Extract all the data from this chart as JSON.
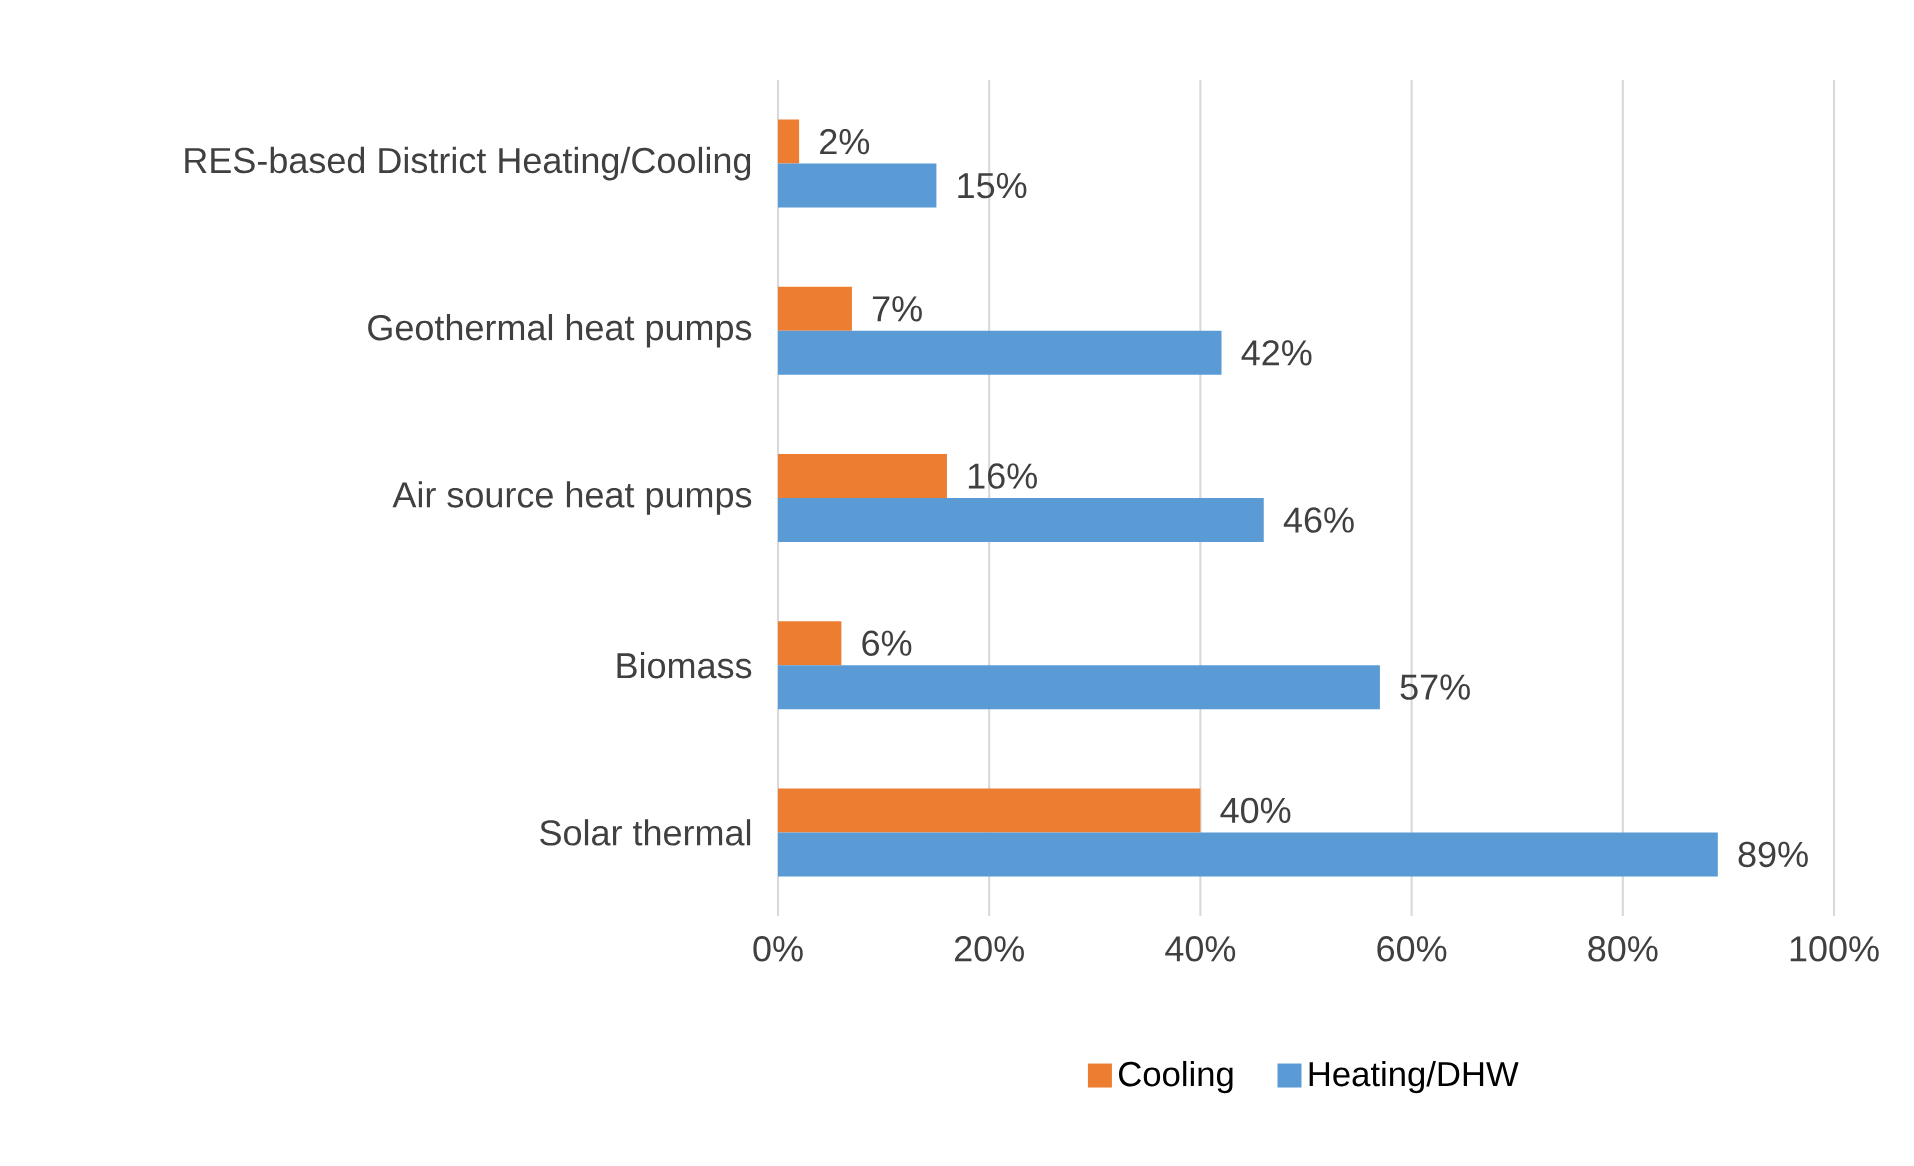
{
  "chart_data": {
    "type": "bar",
    "orientation": "horizontal",
    "categories": [
      "RES-based District Heating/Cooling",
      "Geothermal heat pumps",
      "Air source heat pumps",
      "Biomass",
      "Solar thermal"
    ],
    "series": [
      {
        "name": "Cooling",
        "color": "#ed7d31",
        "values": [
          2,
          7,
          16,
          6,
          40
        ],
        "value_labels": [
          "2%",
          "7%",
          "16%",
          "6%",
          "40%"
        ]
      },
      {
        "name": "Heating/DHW",
        "color": "#5b9bd5",
        "values": [
          15,
          42,
          46,
          57,
          89
        ],
        "value_labels": [
          "15%",
          "42%",
          "46%",
          "57%",
          "89%"
        ]
      }
    ],
    "xlim": [
      0,
      100
    ],
    "xticks": [
      {
        "value": 0,
        "label": "0%"
      },
      {
        "value": 20,
        "label": "20%"
      },
      {
        "value": 40,
        "label": "40%"
      },
      {
        "value": 60,
        "label": "60%"
      },
      {
        "value": 80,
        "label": "80%"
      },
      {
        "value": 100,
        "label": "100%"
      }
    ],
    "grid": "x",
    "legend": "bottom"
  }
}
